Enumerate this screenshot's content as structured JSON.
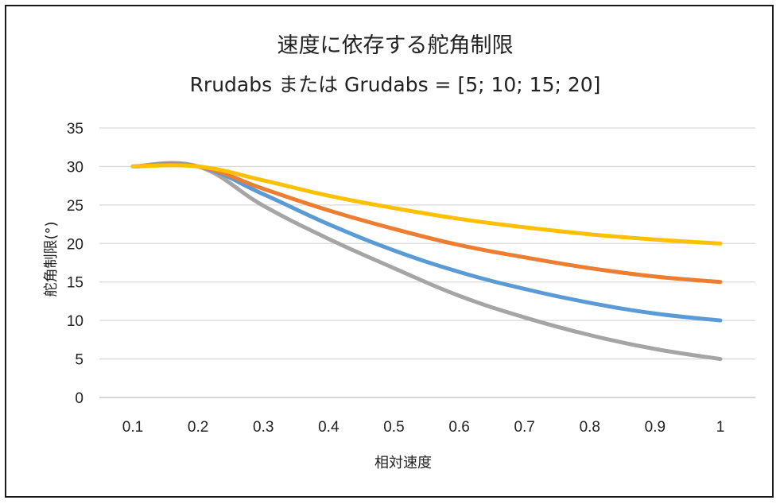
{
  "chart_data": {
    "type": "line",
    "title": "速度に依存する舵角制限",
    "subtitle": "Rrudabs または Grudabs = [5; 10; 15; 20]",
    "xlabel": "相対速度",
    "ylabel": "舵角制限(°)",
    "x": [
      0.1,
      0.2,
      0.3,
      0.4,
      0.5,
      0.6,
      0.7,
      0.8,
      0.9,
      1
    ],
    "x_tick_labels": [
      "0.1",
      "0.2",
      "0.3",
      "0.4",
      "0.5",
      "0.6",
      "0.7",
      "0.8",
      "0.9",
      "1"
    ],
    "ylim": [
      0,
      35
    ],
    "y_ticks": [
      0,
      5,
      10,
      15,
      20,
      25,
      30,
      35
    ],
    "grid": true,
    "series": [
      {
        "color": "#A5A5A5",
        "values": [
          30,
          30,
          24.9,
          20.6,
          16.8,
          13.2,
          10.4,
          8.1,
          6.3,
          5
        ]
      },
      {
        "color": "#5B9BD5",
        "values": [
          30,
          30,
          26.4,
          22.5,
          19.1,
          16.3,
          14.1,
          12.3,
          10.9,
          10
        ]
      },
      {
        "color": "#ED7D31",
        "values": [
          30,
          30,
          27.1,
          24.3,
          21.9,
          19.8,
          18.2,
          16.8,
          15.7,
          15
        ]
      },
      {
        "color": "#FFC000",
        "values": [
          30,
          30,
          28.2,
          26.2,
          24.6,
          23.2,
          22.1,
          21.2,
          20.5,
          20
        ]
      }
    ]
  }
}
